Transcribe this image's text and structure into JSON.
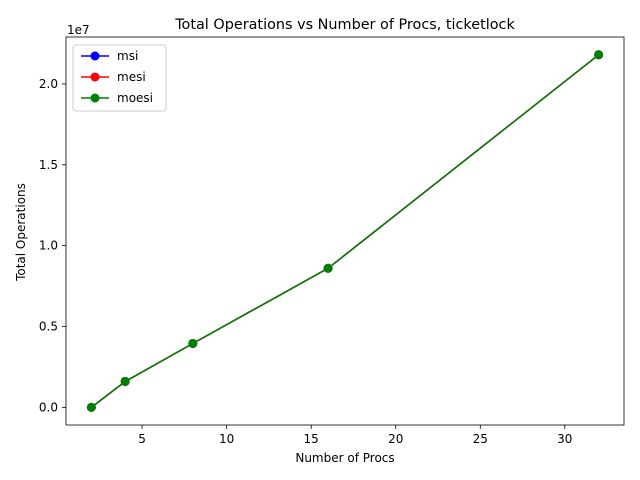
{
  "chart_data": {
    "type": "line",
    "title": "Total Operations vs Number of Procs, ticketlock",
    "xlabel": "Number of Procs",
    "ylabel": "Total Operations",
    "y_offset_label": "1e7",
    "x": [
      2,
      4,
      8,
      16,
      32
    ],
    "xlim": [
      0.5,
      33.5
    ],
    "ylim": [
      -1.09,
      22.9
    ],
    "y_multiplier": 10000000,
    "x_ticks": [
      5,
      10,
      15,
      20,
      25,
      30
    ],
    "y_ticks": [
      0.0,
      0.5,
      1.0,
      1.5,
      2.0
    ],
    "y_tick_labels": [
      "0.0",
      "0.5",
      "1.0",
      "1.5",
      "2.0"
    ],
    "series": [
      {
        "name": "msi",
        "color": "#0000ff",
        "values": [
          0.0,
          1.6,
          3.95,
          8.6,
          21.8
        ]
      },
      {
        "name": "mesi",
        "color": "#ff0000",
        "values": [
          0.0,
          1.6,
          3.95,
          8.6,
          21.8
        ]
      },
      {
        "name": "moesi",
        "color": "#008000",
        "values": [
          0.0,
          1.6,
          3.95,
          8.6,
          21.8
        ]
      }
    ],
    "legend_position": "upper-left",
    "grid": false
  }
}
